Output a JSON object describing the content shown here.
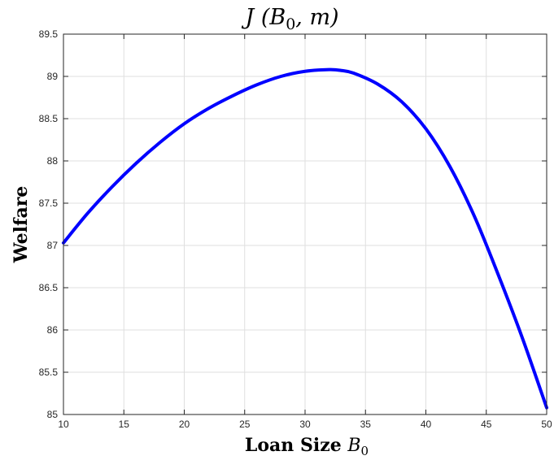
{
  "chart_data": {
    "type": "line",
    "title": {
      "main": "J (B",
      "sub": "0",
      "rest": ", m)"
    },
    "xlabel": {
      "main": "Loan Size ",
      "var": "B",
      "sub": "0"
    },
    "ylabel": "Welfare",
    "xlim": [
      10,
      50
    ],
    "ylim": [
      85,
      89.5
    ],
    "xticks": [
      10,
      15,
      20,
      25,
      30,
      35,
      40,
      45,
      50
    ],
    "xtick_labels": [
      "10",
      "15",
      "20",
      "25",
      "30",
      "35",
      "40",
      "45",
      "50"
    ],
    "yticks": [
      85,
      85.5,
      86,
      86.5,
      87,
      87.5,
      88,
      88.5,
      89,
      89.5
    ],
    "ytick_labels": [
      "85",
      "85.5",
      "86",
      "86.5",
      "87",
      "87.5",
      "88",
      "88.5",
      "89",
      "89.5"
    ],
    "grid": true,
    "series": [
      {
        "color": "#0000ff",
        "x": [
          10,
          12,
          14,
          16,
          18,
          20,
          22,
          24,
          26,
          28,
          30,
          32,
          33,
          34,
          36,
          38,
          40,
          42,
          44,
          46,
          48,
          50
        ],
        "y": [
          87.03,
          87.38,
          87.69,
          87.97,
          88.22,
          88.44,
          88.62,
          88.77,
          88.9,
          89.0,
          89.06,
          89.08,
          89.07,
          89.04,
          88.91,
          88.7,
          88.38,
          87.93,
          87.35,
          86.65,
          85.9,
          85.08
        ]
      }
    ]
  }
}
